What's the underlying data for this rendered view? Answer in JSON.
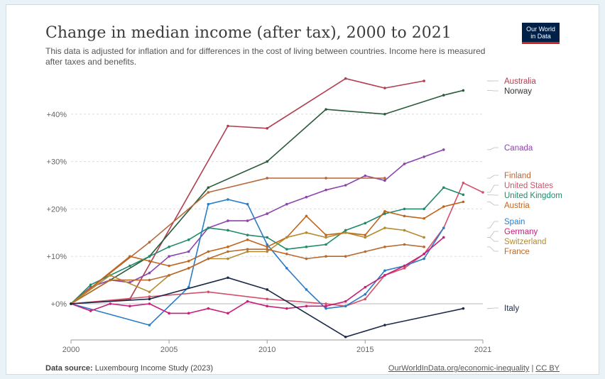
{
  "header": {
    "title": "Change in median income (after tax), 2000 to 2021",
    "subtitle": "This data is adjusted for inflation and for differences in the cost of living between countries. Income here is measured after taxes and benefits.",
    "logo_line1": "Our World",
    "logo_line2": "in Data"
  },
  "footer": {
    "source_label": "Data source:",
    "source_text": "Luxembourg Income Study (2023)",
    "link_text": "OurWorldInData.org/economic-inequality",
    "separator": " | ",
    "license": "CC BY"
  },
  "chart_data": {
    "type": "line",
    "title": "Change in median income (after tax), 2000 to 2021",
    "xlim": [
      2000,
      2021
    ],
    "ylim": [
      -8,
      48
    ],
    "x_ticks": [
      2000,
      2005,
      2010,
      2015,
      2021
    ],
    "y_ticks": [
      0,
      10,
      20,
      30,
      40
    ],
    "y_tick_labels": [
      "+0%",
      "+10%",
      "+20%",
      "+30%",
      "+40%"
    ],
    "grid": "horizontal dotted",
    "legend": "right, labels at line ends",
    "series": [
      {
        "name": "Australia",
        "color": "#b13e4e",
        "x": [
          2000,
          2003,
          2008,
          2010,
          2014,
          2016,
          2018
        ],
        "values": [
          0,
          1,
          37.5,
          37,
          47.5,
          45.5,
          47
        ]
      },
      {
        "name": "Norway",
        "color": "#2a5b3a",
        "x": [
          2000,
          2004,
          2007,
          2010,
          2013,
          2016,
          2019,
          2020
        ],
        "values": [
          0,
          10,
          24.5,
          30,
          41,
          40,
          44,
          45
        ]
      },
      {
        "name": "Canada",
        "color": "#8c44ad",
        "x": [
          2000,
          2001,
          2002,
          2003,
          2004,
          2005,
          2006,
          2007,
          2008,
          2009,
          2010,
          2011,
          2012,
          2013,
          2014,
          2015,
          2016,
          2017,
          2018,
          2019
        ],
        "values": [
          0,
          3.5,
          5,
          4.5,
          6.5,
          10,
          11,
          16,
          17.5,
          17.5,
          19,
          21,
          22.5,
          24,
          25,
          27,
          26,
          29.5,
          31,
          32.5
        ]
      },
      {
        "name": "Finland",
        "color": "#b5673a",
        "x": [
          2000,
          2004,
          2007,
          2010,
          2013,
          2016
        ],
        "values": [
          0,
          13,
          23.5,
          26.5,
          26.5,
          26.5
        ]
      },
      {
        "name": "United States",
        "color": "#d4506a",
        "x": [
          2000,
          2004,
          2007,
          2010,
          2013,
          2014,
          2015,
          2016,
          2017,
          2018,
          2019,
          2020,
          2021
        ],
        "values": [
          0,
          1.5,
          2.5,
          1,
          0,
          -0.5,
          1,
          6,
          7.5,
          10.5,
          16,
          25.5,
          23.5
        ]
      },
      {
        "name": "United Kingdom",
        "color": "#1f8a6c",
        "x": [
          2000,
          2001,
          2002,
          2003,
          2004,
          2005,
          2006,
          2007,
          2008,
          2009,
          2010,
          2011,
          2012,
          2013,
          2014,
          2015,
          2016,
          2017,
          2018,
          2019,
          2020
        ],
        "values": [
          0,
          4,
          6,
          8,
          10,
          12,
          13.5,
          16,
          15.5,
          14.5,
          14,
          11.5,
          12,
          12.5,
          15.5,
          17,
          19,
          20,
          20,
          24.5,
          23
        ]
      },
      {
        "name": "Austria",
        "color": "#c0651c",
        "x": [
          2000,
          2003,
          2004,
          2005,
          2006,
          2007,
          2008,
          2009,
          2010,
          2011,
          2012,
          2013,
          2014,
          2015,
          2016,
          2017,
          2018,
          2019,
          2020
        ],
        "values": [
          0,
          10,
          9,
          8,
          9,
          11,
          12,
          13.5,
          12,
          14,
          18.5,
          14.5,
          15,
          14.5,
          19.5,
          18.5,
          18,
          20.5,
          21.5
        ]
      },
      {
        "name": "Spain",
        "color": "#2a7cc6",
        "x": [
          2000,
          2004,
          2006,
          2007,
          2008,
          2009,
          2010,
          2011,
          2012,
          2013,
          2014,
          2015,
          2016,
          2017,
          2018,
          2019
        ],
        "values": [
          0,
          -4.5,
          3.5,
          21,
          22,
          21,
          12.5,
          7.5,
          3,
          -1,
          -0.5,
          2,
          7,
          8,
          9.5,
          16
        ]
      },
      {
        "name": "Germany",
        "color": "#c6207a",
        "x": [
          2000,
          2001,
          2002,
          2003,
          2004,
          2005,
          2006,
          2007,
          2008,
          2009,
          2010,
          2011,
          2012,
          2013,
          2014,
          2015,
          2016,
          2017,
          2018,
          2019
        ],
        "values": [
          0,
          -1.5,
          0,
          -0.5,
          0,
          -2,
          -2,
          -1,
          -2,
          0.5,
          -0.5,
          -1,
          -0.5,
          -0.5,
          0.5,
          3.5,
          6,
          8,
          10.5,
          14
        ]
      },
      {
        "name": "Switzerland",
        "color": "#b58a2c",
        "x": [
          2000,
          2002,
          2004,
          2005,
          2006,
          2007,
          2008,
          2009,
          2010,
          2011,
          2012,
          2013,
          2014,
          2015,
          2016,
          2017,
          2018
        ],
        "values": [
          0,
          6,
          2.5,
          6,
          7.5,
          9.5,
          9.5,
          11,
          11,
          14,
          15,
          14,
          15,
          14,
          16,
          15.5,
          14
        ]
      },
      {
        "name": "France",
        "color": "#b86a2e",
        "x": [
          2000,
          2002,
          2004,
          2005,
          2006,
          2007,
          2008,
          2009,
          2010,
          2011,
          2012,
          2013,
          2014,
          2015,
          2016,
          2017,
          2018
        ],
        "values": [
          0,
          5,
          5,
          6,
          7.5,
          9.5,
          11,
          11.5,
          11.5,
          10.5,
          9.5,
          10,
          10,
          11,
          12,
          12.5,
          12
        ]
      },
      {
        "name": "Italy",
        "color": "#1c2a4a",
        "x": [
          2000,
          2004,
          2008,
          2010,
          2014,
          2016,
          2020
        ],
        "values": [
          0,
          1,
          5.5,
          3,
          -7,
          -4.5,
          -1
        ]
      }
    ],
    "labels": [
      {
        "series": "Australia",
        "text": "Australia",
        "color": "#b13e4e"
      },
      {
        "series": "Norway",
        "text": "Norway",
        "color": "#333333"
      },
      {
        "series": "Canada",
        "text": "Canada",
        "color": "#8c44ad"
      },
      {
        "series": "Finland",
        "text": "Finland",
        "color": "#b5673a"
      },
      {
        "series": "United States",
        "text": "United States",
        "color": "#d4506a"
      },
      {
        "series": "United Kingdom",
        "text": "United Kingdom",
        "color": "#1f8a6c"
      },
      {
        "series": "Austria",
        "text": "Austria",
        "color": "#c0651c"
      },
      {
        "series": "Spain",
        "text": "Spain",
        "color": "#2a7cc6"
      },
      {
        "series": "Germany",
        "text": "Germany",
        "color": "#c6207a"
      },
      {
        "series": "Switzerland",
        "text": "Switzerland",
        "color": "#b58a2c"
      },
      {
        "series": "France",
        "text": "France",
        "color": "#b86a2e"
      },
      {
        "series": "Italy",
        "text": "Italy",
        "color": "#1c2a4a"
      }
    ]
  }
}
